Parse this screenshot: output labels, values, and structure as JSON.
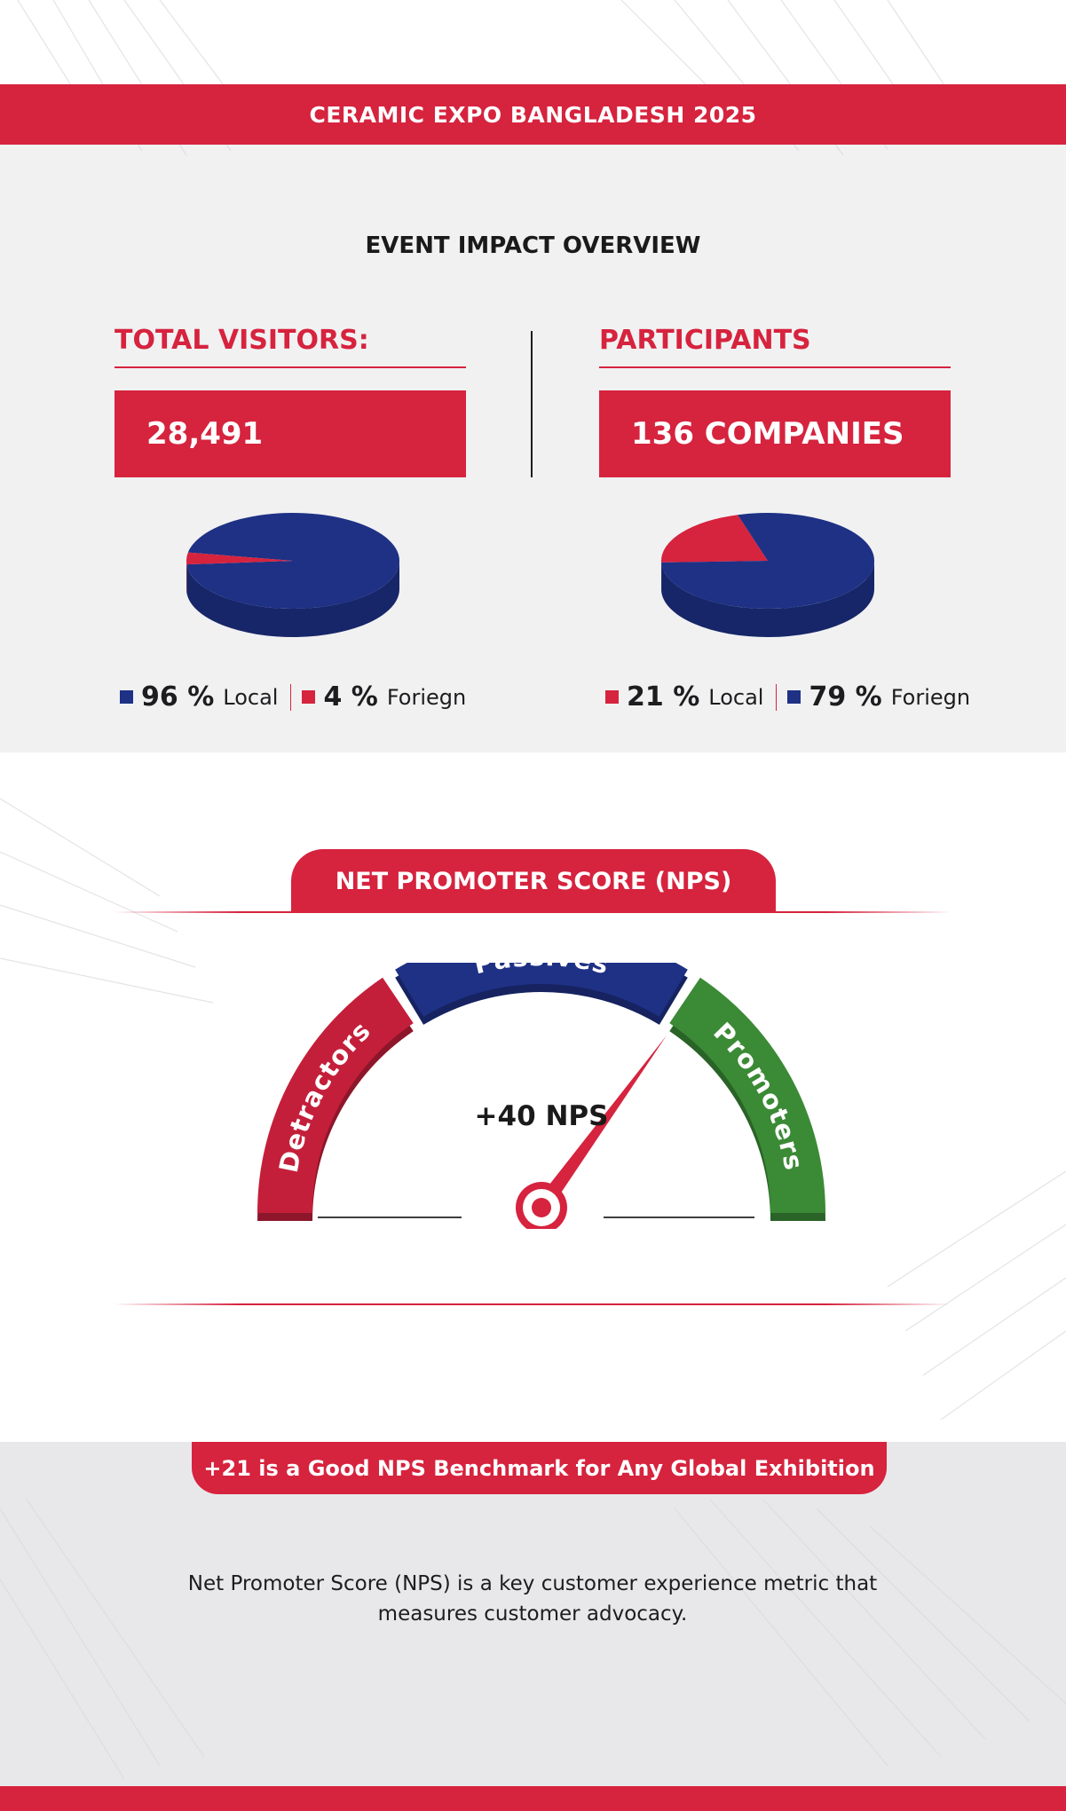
{
  "header": {
    "title": "CERAMIC EXPO BANGLADESH 2025"
  },
  "overview": {
    "title": "EVENT IMPACT OVERVIEW"
  },
  "visitors": {
    "heading": "TOTAL VISITORS:",
    "value": "28,491",
    "legend": [
      {
        "pct": "96 %",
        "label": "Local",
        "color": "#1e3185"
      },
      {
        "pct": "4 %",
        "label": "Foriegn",
        "color": "#d6233e"
      }
    ]
  },
  "participants": {
    "heading": "PARTICIPANTS",
    "value": "136 COMPANIES",
    "legend": [
      {
        "pct": "21 %",
        "label": "Local",
        "color": "#d6233e"
      },
      {
        "pct": "79 %",
        "label": "Foriegn",
        "color": "#1e3185"
      }
    ]
  },
  "nps": {
    "title": "NET PROMOTER SCORE (NPS)",
    "value_label": "+40 NPS",
    "segments": [
      {
        "label": "Detractors",
        "color": "#c41f3a"
      },
      {
        "label": "Passives",
        "color": "#1e3185"
      },
      {
        "label": "Promoters",
        "color": "#3b8a36"
      }
    ]
  },
  "benchmark": {
    "text": "+21 is a Good NPS Benchmark for Any Global Exhibition"
  },
  "description": {
    "text": "Net Promoter Score (NPS) is a key customer experience metric that measures customer advocacy."
  },
  "colors": {
    "red": "#d6233e",
    "blue": "#1e3185",
    "green": "#3b8a36"
  },
  "chart_data": [
    {
      "type": "pie",
      "title": "TOTAL VISITORS:",
      "categories": [
        "Local",
        "Foriegn"
      ],
      "values": [
        96,
        4
      ],
      "colors": [
        "#1e3185",
        "#d6233e"
      ]
    },
    {
      "type": "pie",
      "title": "PARTICIPANTS",
      "categories": [
        "Local",
        "Foriegn"
      ],
      "values": [
        21,
        79
      ],
      "colors": [
        "#d6233e",
        "#1e3185"
      ]
    },
    {
      "type": "gauge",
      "title": "NET PROMOTER SCORE (NPS)",
      "segments": [
        "Detractors",
        "Passives",
        "Promoters"
      ],
      "range": [
        -100,
        100
      ],
      "value": 40,
      "label": "+40 NPS"
    }
  ]
}
